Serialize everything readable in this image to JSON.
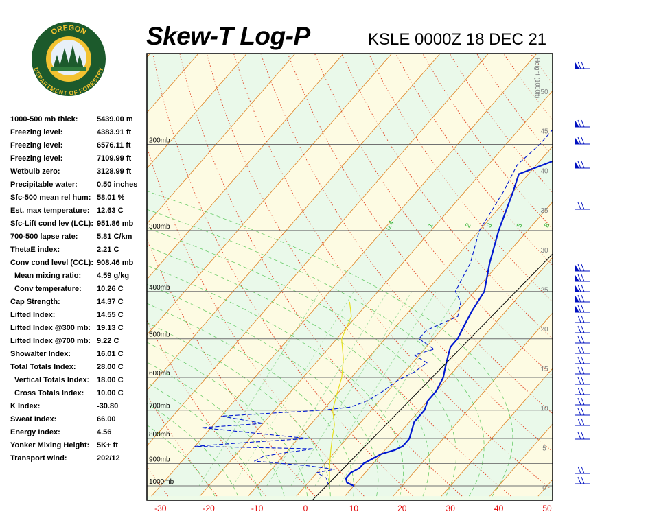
{
  "header": {
    "title": "Skew-T Log-P",
    "station": "KSLE 0000Z 18 DEC 21"
  },
  "logo": {
    "top_text": "OREGON",
    "bottom_text": "DEPARTMENT OF FORESTRY",
    "colors": {
      "ring": "#1c5a2c",
      "inner": "#f2c230",
      "sky": "#e8f0f8"
    }
  },
  "stats": [
    {
      "label": "1000-500 mb thick:",
      "value": "5439.00 m",
      "indent": false
    },
    {
      "label": "Freezing level:",
      "value": "4383.91 ft",
      "indent": false
    },
    {
      "label": "Freezing level:",
      "value": "6576.11 ft",
      "indent": false
    },
    {
      "label": "Freezing level:",
      "value": "7109.99 ft",
      "indent": false
    },
    {
      "label": "Wetbulb zero:",
      "value": "3128.99 ft",
      "indent": false
    },
    {
      "label": "Precipitable water:",
      "value": "0.50 inches",
      "indent": false
    },
    {
      "label": "Sfc-500 mean rel hum:",
      "value": "58.01 %",
      "indent": false
    },
    {
      "label": "Est. max temperature:",
      "value": "12.63 C",
      "indent": false
    },
    {
      "label": "Sfc-Lift cond lev (LCL):",
      "value": "951.86 mb",
      "indent": false
    },
    {
      "label": "700-500 lapse rate:",
      "value": "5.81 C/km",
      "indent": false
    },
    {
      "label": "ThetaE index:",
      "value": "2.21 C",
      "indent": false
    },
    {
      "label": "Conv cond level (CCL):",
      "value": "908.46 mb",
      "indent": false
    },
    {
      "label": "Mean mixing ratio:",
      "value": "4.59 g/kg",
      "indent": true
    },
    {
      "label": "Conv temperature:",
      "value": "10.26 C",
      "indent": true
    },
    {
      "label": "Cap Strength:",
      "value": "14.37 C",
      "indent": false
    },
    {
      "label": "Lifted Index:",
      "value": "14.55 C",
      "indent": false
    },
    {
      "label": "Lifted Index @300 mb:",
      "value": "19.13 C",
      "indent": false
    },
    {
      "label": "Lifted Index @700 mb:",
      "value": "9.22 C",
      "indent": false
    },
    {
      "label": "Showalter Index:",
      "value": "16.01 C",
      "indent": false
    },
    {
      "label": "Total Totals Index:",
      "value": "28.00 C",
      "indent": false
    },
    {
      "label": "Vertical Totals Index:",
      "value": "18.00 C",
      "indent": true
    },
    {
      "label": "Cross Totals Index:",
      "value": "10.00 C",
      "indent": true
    },
    {
      "label": "K Index:",
      "value": "-30.80",
      "indent": false
    },
    {
      "label": "Sweat Index:",
      "value": "66.00",
      "indent": false
    },
    {
      "label": "Energy Index:",
      "value": "4.56",
      "indent": false
    },
    {
      "label": "Yonker Mixing Height:",
      "value": "5K+ ft",
      "indent": false
    },
    {
      "label": "Transport wind:",
      "value": "202/12",
      "indent": false
    }
  ],
  "chart_data": {
    "type": "line",
    "subtype": "skew-t log-p",
    "x_axis": {
      "unit": "C",
      "range": [
        -30,
        50
      ],
      "ticks": [
        "-30",
        "-20",
        "-10",
        "0",
        "10",
        "20",
        "30",
        "40",
        "50"
      ]
    },
    "pressure_levels": [
      {
        "label": "200mb",
        "p": 200
      },
      {
        "label": "300mb",
        "p": 300
      },
      {
        "label": "400mb",
        "p": 400
      },
      {
        "label": "500mb",
        "p": 500
      },
      {
        "label": "600mb",
        "p": 600
      },
      {
        "label": "700mb",
        "p": 700
      },
      {
        "label": "800mb",
        "p": 800
      },
      {
        "label": "900mb",
        "p": 900
      },
      {
        "label": "1000mb",
        "p": 1000
      }
    ],
    "height_axis": {
      "label": "Height (1000ft)",
      "ticks": [
        "0",
        "5",
        "10",
        "15",
        "20",
        "25",
        "30",
        "35",
        "40",
        "45",
        "50"
      ]
    },
    "mixing_ratio_labels": [
      "0.4",
      "1",
      "2",
      "3",
      "5",
      "8"
    ],
    "series": [
      {
        "kind": "temperature",
        "color": "#0018d0",
        "points": [
          [
            1000,
            10
          ],
          [
            985,
            8
          ],
          [
            965,
            7
          ],
          [
            940,
            7
          ],
          [
            920,
            8
          ],
          [
            900,
            8
          ],
          [
            880,
            9
          ],
          [
            860,
            10
          ],
          [
            845,
            12
          ],
          [
            830,
            13
          ],
          [
            815,
            13
          ],
          [
            800,
            13
          ],
          [
            770,
            12
          ],
          [
            740,
            11
          ],
          [
            700,
            11
          ],
          [
            670,
            10
          ],
          [
            640,
            10
          ],
          [
            600,
            9
          ],
          [
            580,
            8
          ],
          [
            560,
            7
          ],
          [
            540,
            6
          ],
          [
            520,
            5
          ],
          [
            500,
            5
          ],
          [
            470,
            4
          ],
          [
            440,
            3
          ],
          [
            400,
            2
          ],
          [
            350,
            -2
          ],
          [
            300,
            -6
          ],
          [
            250,
            -10
          ],
          [
            230,
            -12
          ],
          [
            210,
            -5
          ],
          [
            170,
            5
          ],
          [
            130,
            16
          ]
        ]
      },
      {
        "kind": "dewpoint",
        "color": "#0018d0",
        "points": [
          [
            1000,
            5
          ],
          [
            985,
            4
          ],
          [
            965,
            3
          ],
          [
            940,
            0
          ],
          [
            925,
            3
          ],
          [
            910,
            -3
          ],
          [
            890,
            -15
          ],
          [
            870,
            -14
          ],
          [
            855,
            -10
          ],
          [
            840,
            -5
          ],
          [
            830,
            -30
          ],
          [
            815,
            -20
          ],
          [
            800,
            -8
          ],
          [
            780,
            -20
          ],
          [
            760,
            -32
          ],
          [
            745,
            -20
          ],
          [
            720,
            -30
          ],
          [
            700,
            -10
          ],
          [
            690,
            -5
          ],
          [
            675,
            -3
          ],
          [
            660,
            -2
          ],
          [
            640,
            -1
          ],
          [
            610,
            0
          ],
          [
            585,
            2
          ],
          [
            560,
            3
          ],
          [
            540,
            -1
          ],
          [
            525,
            2
          ],
          [
            500,
            -3
          ],
          [
            480,
            -3
          ],
          [
            450,
            1
          ],
          [
            420,
            -1
          ],
          [
            400,
            -4
          ],
          [
            350,
            -6
          ],
          [
            300,
            -10
          ],
          [
            250,
            -12
          ],
          [
            220,
            -14
          ],
          [
            200,
            -13
          ],
          [
            165,
            -13
          ],
          [
            130,
            -5
          ],
          [
            110,
            0
          ]
        ]
      },
      {
        "kind": "parcel",
        "color": "#e8e020",
        "points": [
          [
            1000,
            5
          ],
          [
            950,
            3
          ],
          [
            900,
            1
          ],
          [
            850,
            -1
          ],
          [
            800,
            -3
          ],
          [
            750,
            -5
          ],
          [
            700,
            -8
          ],
          [
            650,
            -10
          ],
          [
            600,
            -12
          ],
          [
            550,
            -15
          ],
          [
            500,
            -19
          ],
          [
            450,
            -21
          ],
          [
            420,
            -24
          ]
        ]
      }
    ],
    "wind_barbs_note": "wind barbs plotted along right edge",
    "colors": {
      "temperature": "#0018d0",
      "dewpoint": "#0018d0",
      "parcel": "#e8e020",
      "dry_adiabat": "#e07000",
      "moist_adiabat": "#e04020",
      "mixing_ratio": "#48c048",
      "isotherm": "#e08020",
      "axis_label": "#e00000"
    }
  }
}
